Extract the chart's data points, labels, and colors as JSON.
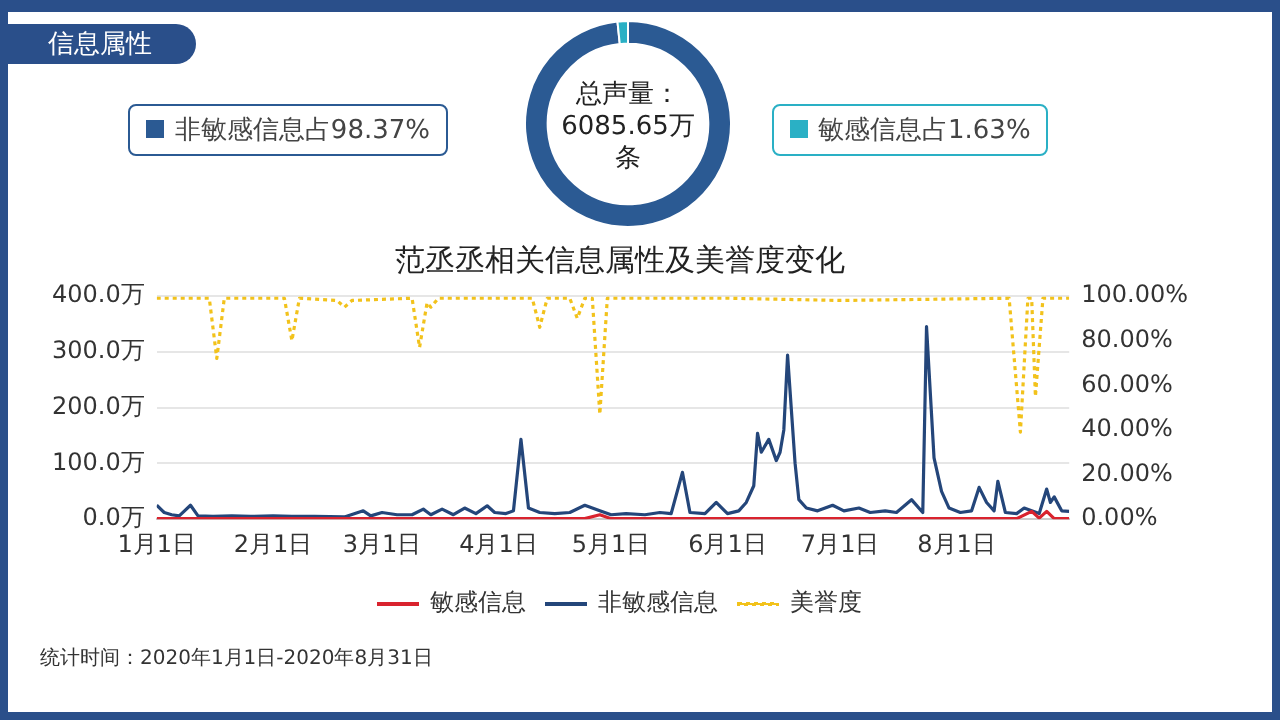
{
  "chart_data": [
    {
      "type": "donut",
      "title": "信息属性",
      "categories": [
        "非敏感信息占98.37%",
        "敏感信息占1.63%"
      ],
      "values": [
        98.37,
        1.63
      ],
      "colors": [
        "#2b5a93",
        "#2ab0c5"
      ],
      "legend": "bottom left",
      "annotations": [
        "总声量：6085.65万条"
      ]
    },
    {
      "type": "line",
      "title": "范丞丞相关信息属性及美誉度变化",
      "xlim": [
        "2020-01-01",
        "2020-08-31"
      ],
      "xticks": [
        {
          "value": "2020-01-01",
          "label": "1月1日"
        },
        {
          "value": "2020-02-01",
          "label": "2月1日"
        },
        {
          "value": "2020-03-01",
          "label": "3月1日"
        },
        {
          "value": "2020-04-01",
          "label": "4月1日"
        },
        {
          "value": "2020-05-01",
          "label": "5月1日"
        },
        {
          "value": "2020-06-01",
          "label": "6月1日"
        },
        {
          "value": "2020-07-01",
          "label": "7月1日"
        },
        {
          "value": "2020-08-01",
          "label": "8月1日"
        }
      ],
      "ylim": [
        0,
        400
      ],
      "yticks": [
        {
          "value": 0,
          "label": "0.0万"
        },
        {
          "value": 100,
          "label": "100.0万"
        },
        {
          "value": 200,
          "label": "200.0万"
        },
        {
          "value": 300,
          "label": "300.0万"
        },
        {
          "value": 400,
          "label": "400.0万"
        }
      ],
      "y2lim": [
        0,
        100
      ],
      "y2ticks": [
        {
          "value": 0,
          "label": "0.00%"
        },
        {
          "value": 20,
          "label": "20.00%"
        },
        {
          "value": 40,
          "label": "40.00%"
        },
        {
          "value": 60,
          "label": "60.00%"
        },
        {
          "value": 80,
          "label": "80.00%"
        },
        {
          "value": 100,
          "label": "100.00%"
        }
      ],
      "grid": "y",
      "legend": "bottom",
      "marker": "none",
      "series": [
        {
          "name": "敏感信息",
          "color": "#d9232e",
          "line_style": "solid",
          "x": [
            "2020-01-01",
            "2020-04-24",
            "2020-04-28",
            "2020-05-01",
            "2020-08-17",
            "2020-08-21",
            "2020-08-23",
            "2020-08-25",
            "2020-08-27",
            "2020-08-31"
          ],
          "values": [
            1,
            1,
            8,
            1,
            1,
            14,
            2,
            14,
            1,
            1
          ]
        },
        {
          "name": "非敏感信息",
          "color": "#24467a",
          "line_style": "solid",
          "x": [
            "2020-01-01",
            "2020-01-03",
            "2020-01-05",
            "2020-01-07",
            "2020-01-10",
            "2020-01-12",
            "2020-01-16",
            "2020-01-21",
            "2020-01-26",
            "2020-02-01",
            "2020-02-06",
            "2020-02-12",
            "2020-02-20",
            "2020-02-25",
            "2020-02-27",
            "2020-03-01",
            "2020-03-05",
            "2020-03-09",
            "2020-03-12",
            "2020-03-14",
            "2020-03-17",
            "2020-03-20",
            "2020-03-23",
            "2020-03-26",
            "2020-03-29",
            "2020-03-31",
            "2020-04-03",
            "2020-04-05",
            "2020-04-07",
            "2020-04-09",
            "2020-04-12",
            "2020-04-16",
            "2020-04-20",
            "2020-04-24",
            "2020-04-26",
            "2020-04-28",
            "2020-05-01",
            "2020-05-05",
            "2020-05-10",
            "2020-05-14",
            "2020-05-17",
            "2020-05-20",
            "2020-05-22",
            "2020-05-26",
            "2020-05-29",
            "2020-06-01",
            "2020-06-04",
            "2020-06-06",
            "2020-06-08",
            "2020-06-09",
            "2020-06-10",
            "2020-06-12",
            "2020-06-14",
            "2020-06-15",
            "2020-06-16",
            "2020-06-17",
            "2020-06-19",
            "2020-06-20",
            "2020-06-22",
            "2020-06-25",
            "2020-06-29",
            "2020-07-02",
            "2020-07-06",
            "2020-07-09",
            "2020-07-13",
            "2020-07-16",
            "2020-07-20",
            "2020-07-23",
            "2020-07-24",
            "2020-07-26",
            "2020-07-28",
            "2020-07-30",
            "2020-08-02",
            "2020-08-05",
            "2020-08-07",
            "2020-08-09",
            "2020-08-11",
            "2020-08-12",
            "2020-08-14",
            "2020-08-17",
            "2020-08-19",
            "2020-08-21",
            "2020-08-23",
            "2020-08-25",
            "2020-08-26",
            "2020-08-27",
            "2020-08-29",
            "2020-08-31"
          ],
          "values": [
            25,
            12,
            8,
            6,
            25,
            6,
            5,
            6,
            5,
            6,
            5,
            5,
            4,
            15,
            6,
            12,
            8,
            8,
            18,
            8,
            18,
            8,
            20,
            10,
            24,
            12,
            10,
            15,
            143,
            20,
            12,
            10,
            12,
            25,
            20,
            15,
            8,
            10,
            8,
            12,
            10,
            84,
            12,
            10,
            30,
            10,
            15,
            30,
            60,
            154,
            120,
            143,
            105,
            120,
            160,
            294,
            100,
            35,
            20,
            15,
            25,
            15,
            20,
            12,
            15,
            12,
            35,
            12,
            345,
            110,
            50,
            20,
            12,
            15,
            57,
            30,
            15,
            68,
            12,
            10,
            20,
            15,
            10,
            54,
            30,
            40,
            15,
            14
          ]
        },
        {
          "name": "美誉度",
          "color": "#f2c21b",
          "line_style": "dotted",
          "axis": "y2",
          "x": [
            "2020-01-01",
            "2020-01-15",
            "2020-01-17",
            "2020-01-19",
            "2020-02-04",
            "2020-02-06",
            "2020-02-08",
            "2020-02-18",
            "2020-02-20",
            "2020-02-22",
            "2020-03-09",
            "2020-03-11",
            "2020-03-13",
            "2020-03-14",
            "2020-03-16",
            "2020-04-10",
            "2020-04-12",
            "2020-04-14",
            "2020-04-20",
            "2020-04-22",
            "2020-04-24",
            "2020-04-26",
            "2020-04-28",
            "2020-04-30",
            "2020-06-01",
            "2020-07-01",
            "2020-08-15",
            "2020-08-18",
            "2020-08-20",
            "2020-08-21",
            "2020-08-22",
            "2020-08-24",
            "2020-08-31"
          ],
          "values": [
            99,
            99,
            72,
            99,
            99,
            80,
            99,
            98,
            95,
            98,
            99,
            77,
            97,
            95,
            99,
            99,
            86,
            99,
            99,
            90,
            99,
            99,
            47,
            99,
            99,
            98,
            99,
            39,
            99,
            99,
            55,
            99,
            99
          ]
        }
      ],
      "annotations": [
        "统计时间：2020年1月1日-2020年8月31日"
      ]
    }
  ]
}
